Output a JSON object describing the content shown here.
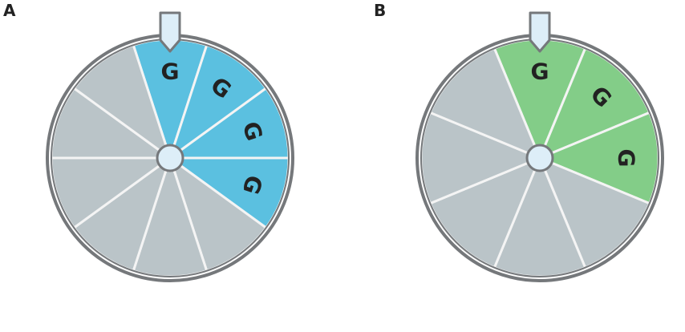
{
  "panels": [
    {
      "label": "A",
      "highlight_color": "#5bc0e0",
      "base_color": "#bac4c8",
      "sectors": [
        "G",
        "G",
        "G",
        "G",
        null,
        null,
        null,
        null,
        null,
        null
      ]
    },
    {
      "label": "B",
      "highlight_color": "#83cd88",
      "base_color": "#bac4c8",
      "sectors": [
        "G",
        "G",
        "G",
        null,
        null,
        null,
        null,
        null
      ]
    }
  ]
}
